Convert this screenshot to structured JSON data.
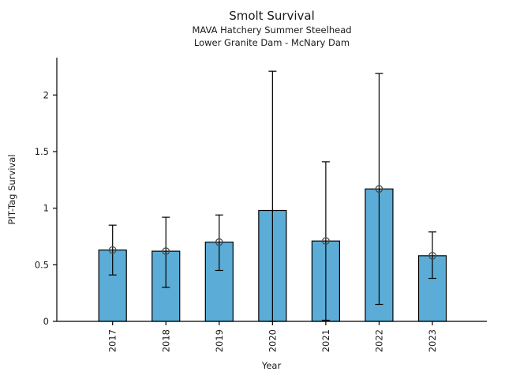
{
  "chart_data": {
    "type": "bar",
    "title": "Smolt Survival",
    "subtitle1": "MAVA Hatchery Summer Steelhead",
    "subtitle2": "Lower Granite Dam - McNary Dam",
    "xlabel": "Year",
    "ylabel": "PIT-Tag Survival",
    "categories": [
      "2017",
      "2018",
      "2019",
      "2020",
      "2021",
      "2022",
      "2023"
    ],
    "values": [
      0.63,
      0.62,
      0.7,
      0.98,
      0.71,
      1.17,
      0.58
    ],
    "error_low": [
      0.41,
      0.3,
      0.45,
      0.0,
      0.01,
      0.15,
      0.38
    ],
    "error_high": [
      0.85,
      0.92,
      0.94,
      2.21,
      1.41,
      2.19,
      0.79
    ],
    "point_marker_shown": [
      true,
      true,
      true,
      false,
      true,
      true,
      true
    ],
    "yticks": [
      0,
      0.5,
      1,
      1.5,
      2
    ],
    "ytick_labels": [
      "0",
      "0.5",
      "1",
      "1.5",
      "2"
    ],
    "ylim": [
      0,
      2.33
    ],
    "grid": false,
    "legend": null,
    "bar_color": "#5BADD7",
    "bar_edge_color": "#000000",
    "errorbar_color": "#000000",
    "marker_edge_color": "#4a4a4a"
  }
}
